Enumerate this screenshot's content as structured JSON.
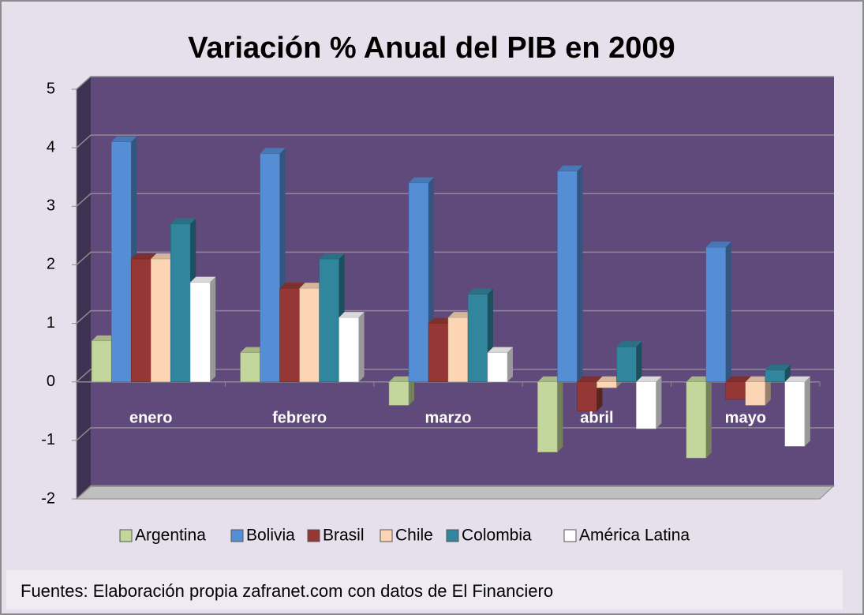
{
  "chart_data": {
    "type": "bar3d",
    "title": "Variación % Anual del PIB en 2009",
    "categories": [
      "enero",
      "febrero",
      "marzo",
      "abril",
      "mayo"
    ],
    "series": [
      {
        "name": "Argentina",
        "color": "#c3d69b",
        "values": [
          0.7,
          0.5,
          -0.4,
          -1.2,
          -1.3
        ]
      },
      {
        "name": "Bolivia",
        "color": "#558ed5",
        "values": [
          4.1,
          3.9,
          3.4,
          3.6,
          2.3
        ]
      },
      {
        "name": "Brasil",
        "color": "#953735",
        "values": [
          2.1,
          1.6,
          1.0,
          -0.5,
          -0.3
        ]
      },
      {
        "name": "Chile",
        "color": "#fcd5b5",
        "values": [
          2.1,
          1.6,
          1.1,
          -0.1,
          -0.4
        ]
      },
      {
        "name": "Colombia",
        "color": "#31859c",
        "values": [
          2.7,
          2.1,
          1.5,
          0.6,
          0.2
        ]
      },
      {
        "name": "América Latina",
        "color": "#ffffff",
        "values": [
          1.7,
          1.1,
          0.5,
          -0.8,
          -1.1
        ]
      }
    ],
    "ylim": [
      -2,
      5
    ],
    "yticks": [
      -2,
      -1,
      0,
      1,
      2,
      3,
      4,
      5
    ],
    "grid": true,
    "legend": "bottom",
    "source": "Fuentes: Elaboración propia zafranet.com con datos de El Financiero"
  }
}
